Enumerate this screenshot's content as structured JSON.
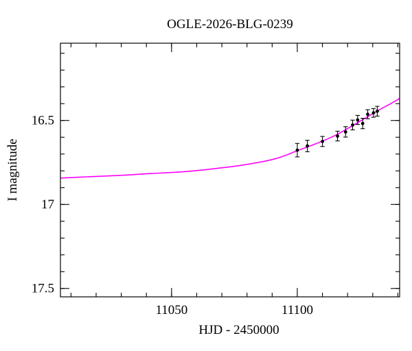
{
  "chart": {
    "title": "OGLE-2026-BLG-0239",
    "xlabel": "HJD - 2450000",
    "ylabel": "I magnitude"
  },
  "chart_data": {
    "type": "line",
    "title": "OGLE-2026-BLG-0239",
    "xlabel": "HJD - 2450000",
    "ylabel": "I magnitude",
    "grid": false,
    "legend": "none",
    "background": "#ffffff",
    "frame_color": "#000000",
    "x_axis": {
      "min": 11005.8,
      "max": 11140.7,
      "major_ticks": [
        11050,
        11100
      ],
      "tick_labels": [
        "11050",
        "11100"
      ],
      "minor_tick_step": 10
    },
    "y_axis": {
      "min": 16.04,
      "max": 17.55,
      "inverted": true,
      "major_ticks": [
        16.5,
        17.0,
        17.5
      ],
      "tick_labels": [
        "16.5",
        "17",
        "17.5"
      ],
      "minor_tick_step": 0.1
    },
    "series": [
      {
        "name": "model-light-curve",
        "type": "line",
        "color": "#ff00ff",
        "points": [
          [
            11005.8,
            16.843
          ],
          [
            11017.2,
            16.835
          ],
          [
            11029.5,
            16.827
          ],
          [
            11041.8,
            16.816
          ],
          [
            11054.1,
            16.806
          ],
          [
            11066.4,
            16.788
          ],
          [
            11078.7,
            16.765
          ],
          [
            11091.0,
            16.729
          ],
          [
            11100.0,
            16.68
          ],
          [
            11107.3,
            16.639
          ],
          [
            11115.5,
            16.586
          ],
          [
            11123.7,
            16.516
          ],
          [
            11131.9,
            16.443
          ],
          [
            11137.4,
            16.398
          ],
          [
            11140.7,
            16.369
          ]
        ]
      },
      {
        "name": "observations",
        "type": "scatter-errorbar",
        "color": "#000000",
        "points": [
          {
            "x": 11100.0,
            "y": 16.677,
            "err": 0.04
          },
          {
            "x": 11104.0,
            "y": 16.652,
            "err": 0.034
          },
          {
            "x": 11110.0,
            "y": 16.625,
            "err": 0.03
          },
          {
            "x": 11116.0,
            "y": 16.593,
            "err": 0.029
          },
          {
            "x": 11119.2,
            "y": 16.568,
            "err": 0.031
          },
          {
            "x": 11122.0,
            "y": 16.527,
            "err": 0.029
          },
          {
            "x": 11124.0,
            "y": 16.497,
            "err": 0.027
          },
          {
            "x": 11126.0,
            "y": 16.518,
            "err": 0.031
          },
          {
            "x": 11128.0,
            "y": 16.463,
            "err": 0.027
          },
          {
            "x": 11130.3,
            "y": 16.455,
            "err": 0.026
          },
          {
            "x": 11131.8,
            "y": 16.445,
            "err": 0.029
          }
        ]
      }
    ]
  }
}
